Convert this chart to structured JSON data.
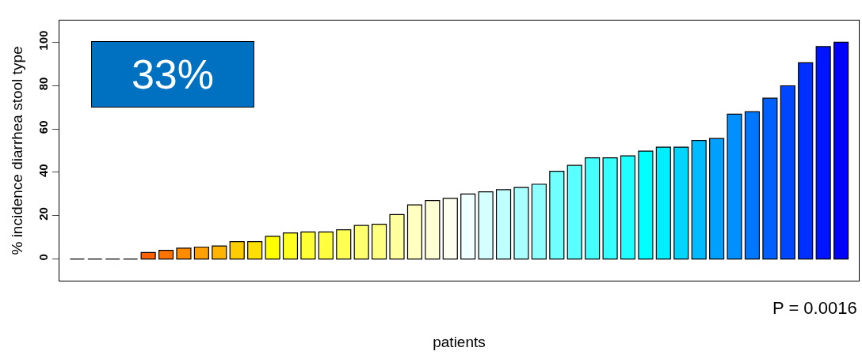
{
  "chart_data": {
    "type": "bar",
    "xlabel": "patients",
    "ylabel": "% incidence diarrhea stool type",
    "categories": [
      null,
      null,
      null,
      null,
      null,
      null,
      null,
      null,
      null,
      null,
      null,
      null,
      null,
      null,
      null,
      null,
      null,
      null,
      null,
      null,
      null,
      null,
      null,
      null,
      null,
      null,
      null,
      null,
      null,
      null,
      null,
      null,
      null,
      null,
      null,
      null,
      null,
      null,
      null,
      null,
      null,
      null,
      null,
      null
    ],
    "values": [
      0,
      0,
      0,
      0,
      3,
      4,
      5,
      5.5,
      6,
      8,
      8,
      10.5,
      12,
      12.5,
      12.5,
      13.5,
      15.5,
      16,
      20.5,
      25,
      27,
      28,
      30,
      31,
      32,
      33,
      34.5,
      40.5,
      43.2,
      46.7,
      46.7,
      47.6,
      49.8,
      51.6,
      51.6,
      54.7,
      55.6,
      66.8,
      67.9,
      74.2,
      79.9,
      90.5,
      98,
      100
    ],
    "colors": [
      "#000000",
      "#000000",
      "#000000",
      "#000000",
      "#ff6000",
      "#ff7400",
      "#ff8c00",
      "#ffa000",
      "#ffb400",
      "#ffcc00",
      "#ffe000",
      "#ffff00",
      "#ffff20",
      "#ffff33",
      "#ffff40",
      "#ffff55",
      "#ffff70",
      "#ffff80",
      "#ffffa0",
      "#ffffc0",
      "#ffffd5",
      "#fffff0",
      "#f0ffff",
      "#d5ffff",
      "#c0ffff",
      "#aaffff",
      "#90ffff",
      "#70ffff",
      "#5affff",
      "#45ffff",
      "#35ffff",
      "#20ffff",
      "#00ffff",
      "#00eeff",
      "#00d5ff",
      "#00bbff",
      "#00a0ff",
      "#0090ff",
      "#0077ff",
      "#0060ff",
      "#0045ff",
      "#0030ff",
      "#0015ff",
      "#0000ff"
    ],
    "ylim": [
      -10,
      110
    ],
    "yticks": [
      0,
      20,
      40,
      60,
      80,
      100
    ],
    "tick_labels": "y",
    "legend": false,
    "annotations": [
      "33%",
      "P = 0.0016"
    ]
  }
}
